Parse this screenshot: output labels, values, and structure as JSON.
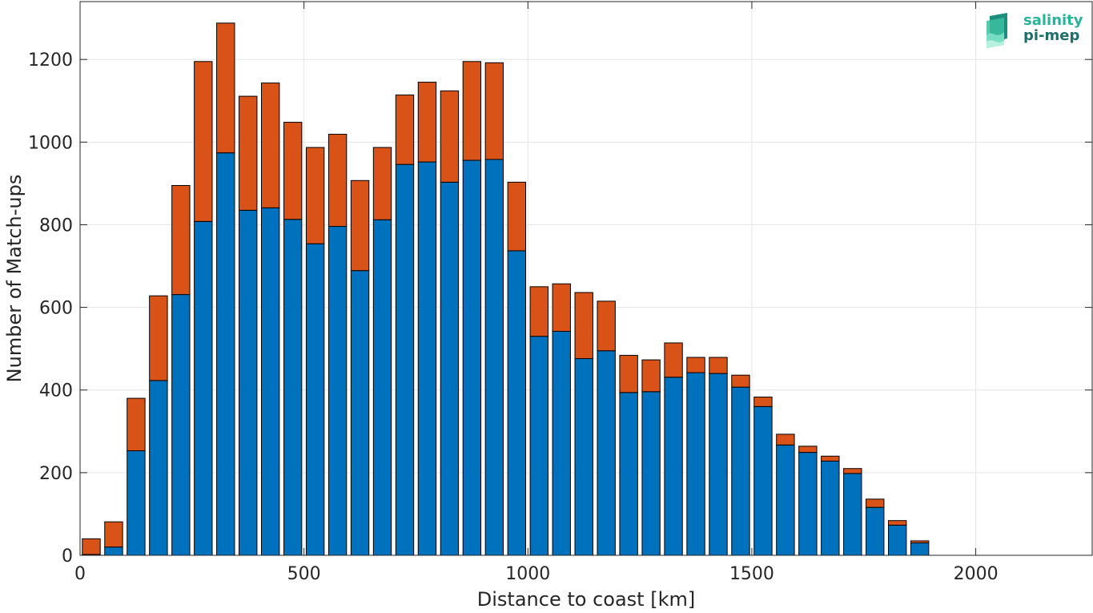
{
  "chart_data": {
    "type": "bar",
    "stacked": true,
    "xlabel": "Distance to coast [km]",
    "ylabel": "Number of Match-ups",
    "xlim": [
      0,
      2260
    ],
    "ylim": [
      0,
      1340
    ],
    "xticks": [
      0,
      500,
      1000,
      1500,
      2000
    ],
    "yticks": [
      0,
      200,
      400,
      600,
      800,
      1000,
      1200
    ],
    "grid": true,
    "bin_width": 50,
    "x": [
      25,
      75,
      125,
      175,
      225,
      275,
      325,
      375,
      425,
      475,
      525,
      575,
      625,
      675,
      725,
      775,
      825,
      875,
      925,
      975,
      1025,
      1075,
      1125,
      1175,
      1225,
      1275,
      1325,
      1375,
      1425,
      1475,
      1525,
      1575,
      1625,
      1675,
      1725,
      1775,
      1825,
      1875
    ],
    "series": [
      {
        "color": "#0072BD",
        "values": [
          2,
          20,
          253,
          423,
          631,
          808,
          974,
          835,
          841,
          813,
          754,
          796,
          689,
          812,
          946,
          952,
          903,
          956,
          958,
          737,
          530,
          542,
          476,
          495,
          394,
          396,
          431,
          442,
          440,
          407,
          360,
          267,
          249,
          228,
          198,
          116,
          73,
          30
        ]
      },
      {
        "color": "#D95319",
        "values": [
          38,
          61,
          127,
          205,
          264,
          387,
          314,
          276,
          302,
          235,
          233,
          223,
          218,
          175,
          168,
          193,
          221,
          239,
          234,
          166,
          120,
          115,
          160,
          120,
          90,
          77,
          83,
          37,
          39,
          29,
          23,
          26,
          15,
          12,
          12,
          20,
          11,
          5
        ]
      }
    ]
  },
  "logo": {
    "line1": "salinity",
    "line2": "pi-mep"
  }
}
